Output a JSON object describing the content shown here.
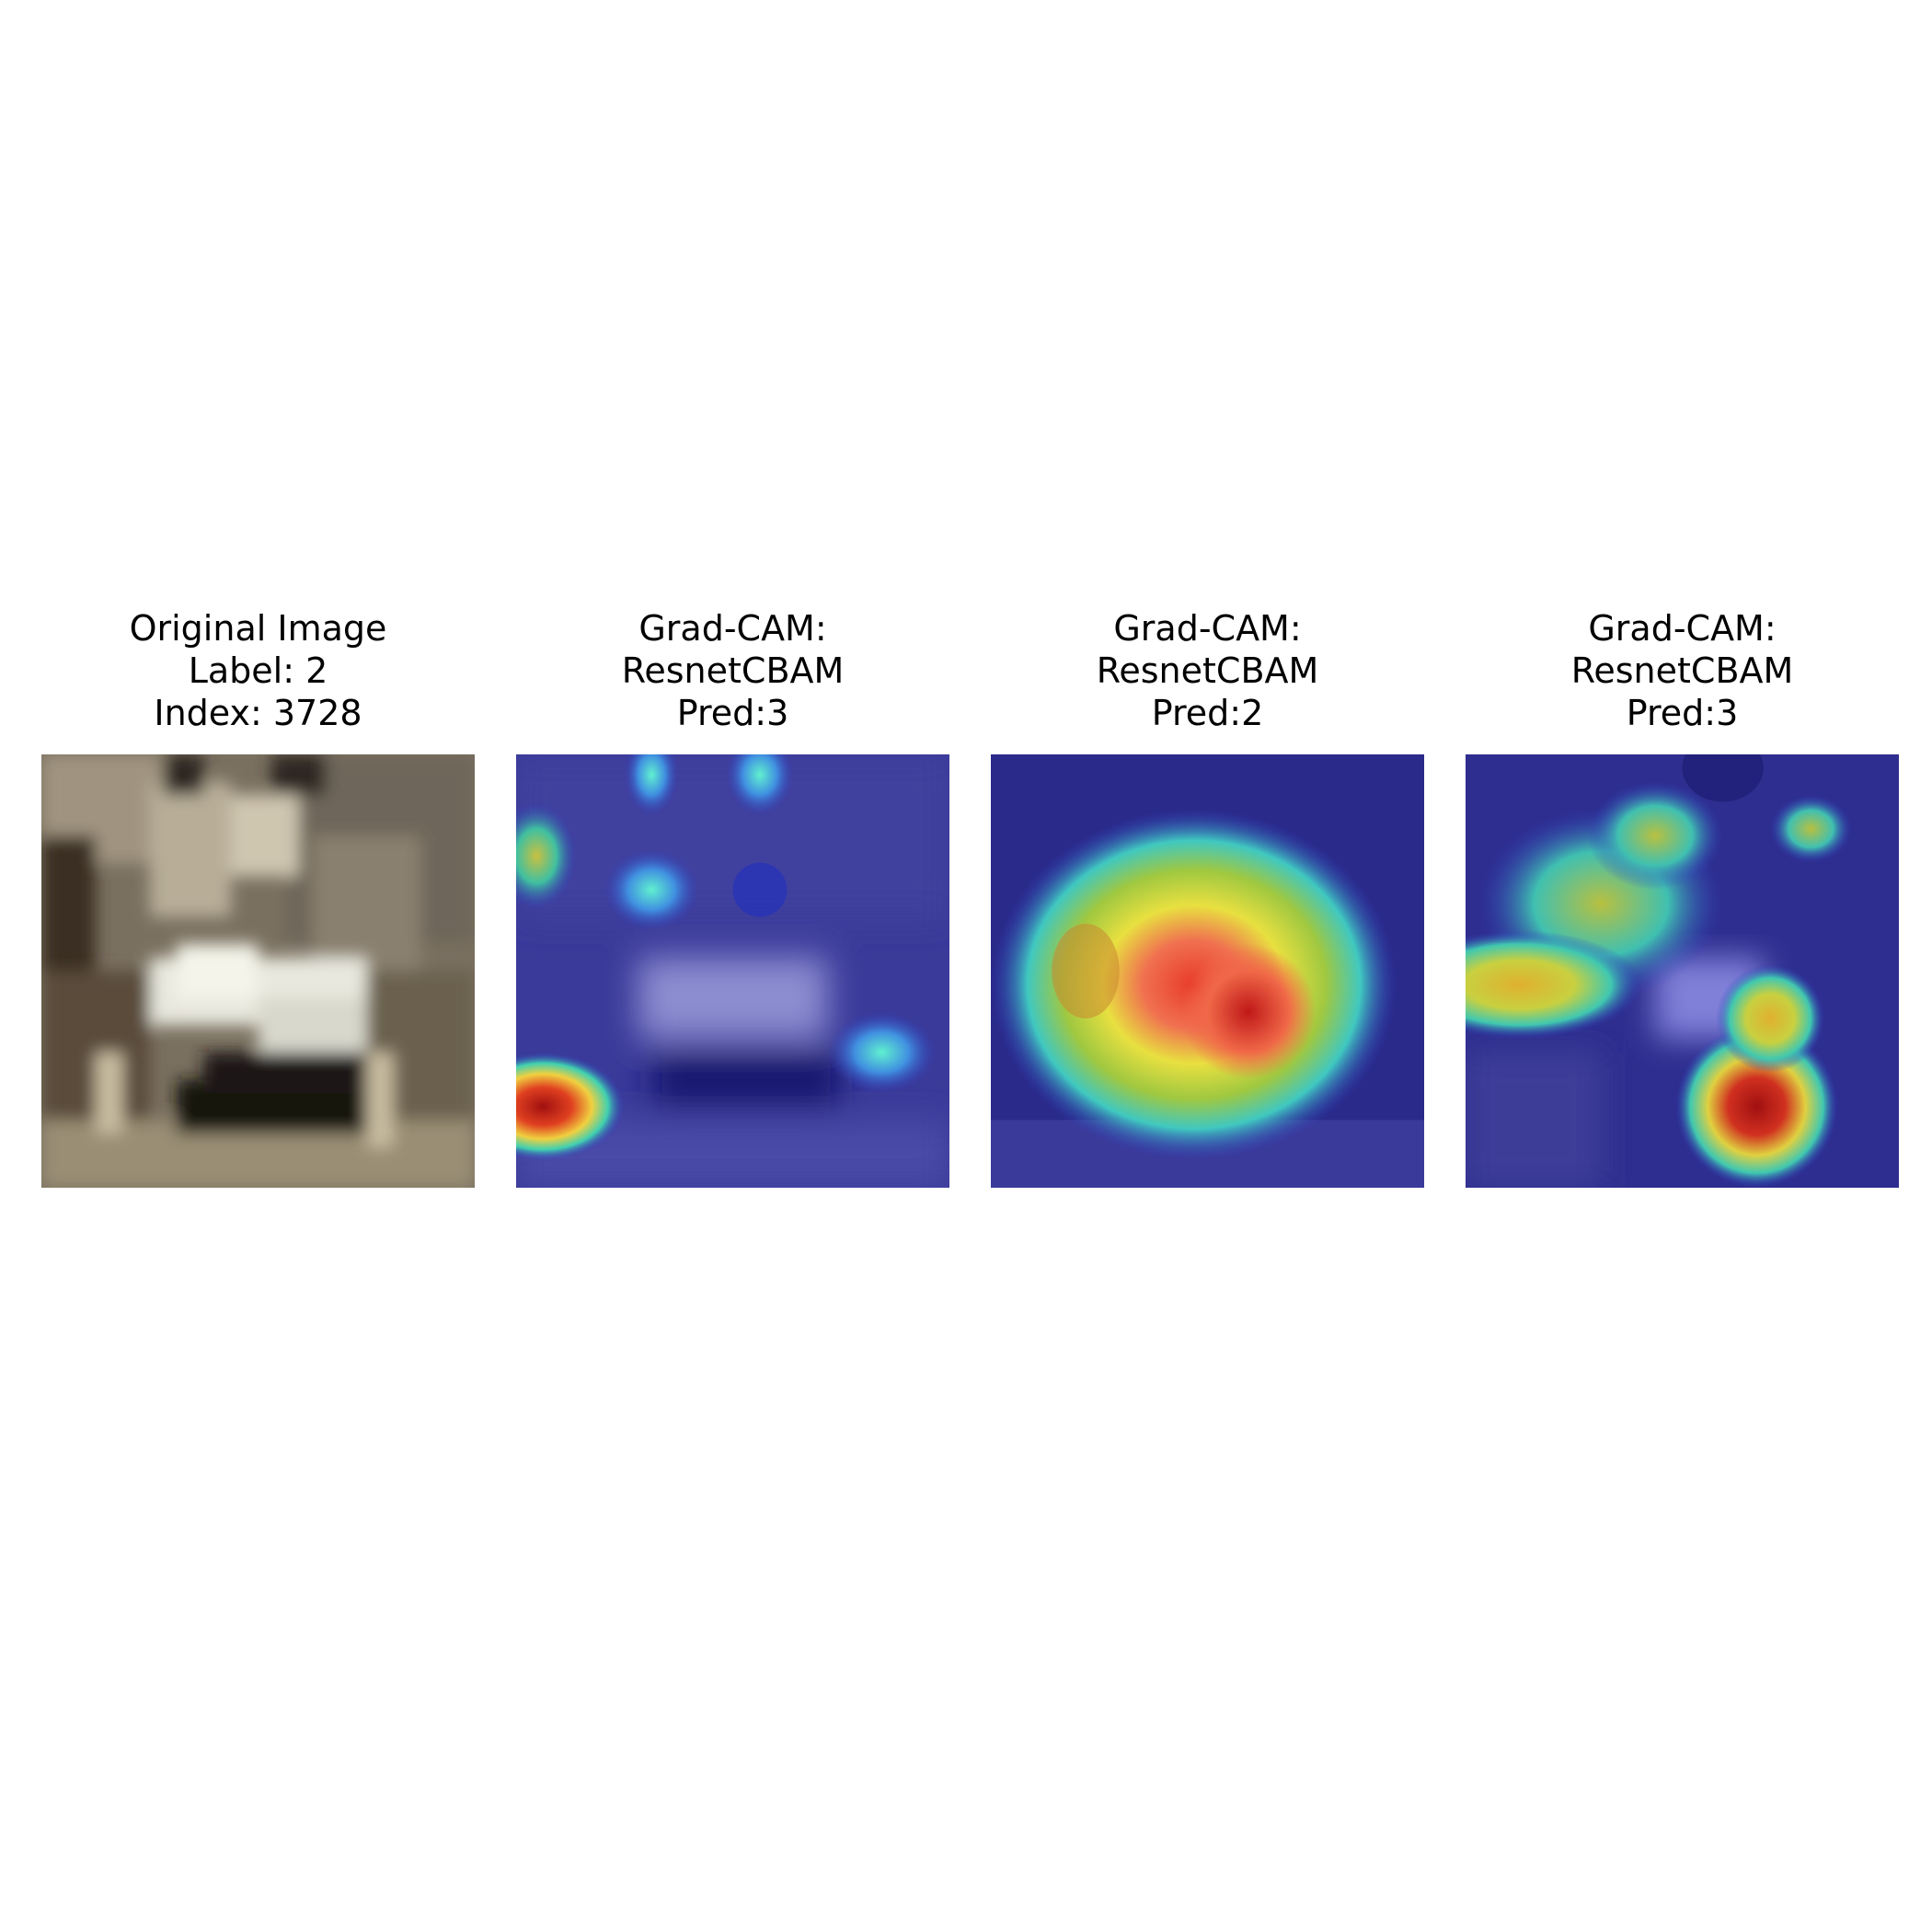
{
  "panels": [
    {
      "line1": "Original Image",
      "line2": "Label: 2",
      "line3": "Index: 3728"
    },
    {
      "line1": "Grad-CAM:",
      "line2": "ResnetCBAM",
      "line3": "Pred:3"
    },
    {
      "line1": "Grad-CAM:",
      "line2": "ResnetCBAM",
      "line3": "Pred:2"
    },
    {
      "line1": "Grad-CAM:",
      "line2": "ResnetCBAM",
      "line3": "Pred:3"
    }
  ],
  "colors": {
    "photo_background": "#7d7565",
    "photo_dark": "#2a241c",
    "photo_light": "#f0f0e8",
    "heatmap_low": "#1a1a8c",
    "heatmap_mid": "#40e0c0",
    "heatmap_high": "#b01010"
  }
}
